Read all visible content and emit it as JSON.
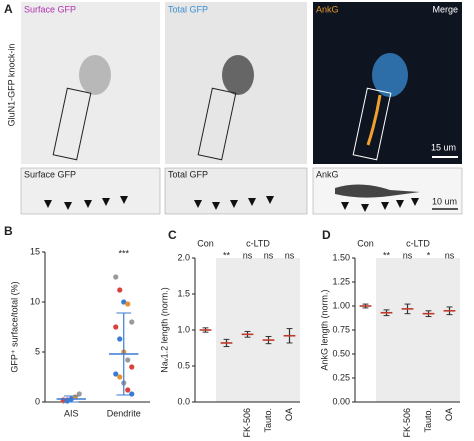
{
  "figure": {
    "panel_labels": [
      "A",
      "B",
      "C",
      "D"
    ],
    "side_label": "GluN1-GFP knock-in",
    "images": [
      {
        "label": "Surface GFP"
      },
      {
        "label": "Total GFP"
      },
      {
        "label": "AnkG",
        "label2": "Merge",
        "scale": "15 um"
      }
    ],
    "strips": [
      {
        "label": "Surface GFP"
      },
      {
        "label": "Total GFP"
      },
      {
        "label": "AnkG",
        "scale": "10 um"
      }
    ]
  },
  "chart_data": [
    {
      "type": "strip",
      "ylabel": "GFP⁺ surface/total (%)",
      "categories": [
        "AIS",
        "Dendrite"
      ],
      "points": [
        [
          0.1,
          0.2,
          0.3,
          0.5,
          0.8,
          0.2,
          0.1
        ],
        [
          12.5,
          11.2,
          10,
          9.8,
          8,
          7.5,
          6.3,
          5,
          4.2,
          3.5,
          2.8,
          2.5,
          1.9,
          1.2,
          0.8
        ]
      ],
      "colors": [
        "#9a9a9a",
        "#d9413b",
        "#3a7bd5",
        "#e8922d"
      ],
      "means": [
        0.3,
        4.8
      ],
      "errors": [
        0.3,
        4.1
      ],
      "annotations": [
        null,
        "***"
      ],
      "ylim": [
        0,
        15
      ],
      "yticks": [
        0,
        5,
        10,
        15
      ]
    },
    {
      "type": "strip",
      "ylabel": "Naᵥ1.2 length (norm.)",
      "groups": [
        "Con",
        "c-LTD"
      ],
      "categories": [
        null,
        null,
        "FK-506",
        "Tauto.",
        "OA"
      ],
      "means": [
        1.0,
        0.82,
        0.94,
        0.86,
        0.92
      ],
      "errors": [
        0.03,
        0.05,
        0.04,
        0.05,
        0.1
      ],
      "annotations": [
        null,
        "**",
        "ns",
        "ns",
        "ns"
      ],
      "ylim": [
        0,
        2
      ],
      "yticks": [
        {
          "value": 0,
          "label": "0.0"
        },
        {
          "value": 0.5,
          "label": "0.5"
        },
        {
          "value": 1,
          "label": "1.0"
        },
        {
          "value": 1.5,
          "label": "1.5"
        },
        {
          "value": 2,
          "label": "2.0"
        }
      ]
    },
    {
      "type": "strip",
      "ylabel": "AnkG length (norm.)",
      "groups": [
        "Con",
        "c-LTD"
      ],
      "categories": [
        null,
        null,
        "FK-506",
        "Tauto.",
        "OA"
      ],
      "means": [
        1.0,
        0.93,
        0.97,
        0.92,
        0.95
      ],
      "errors": [
        0.02,
        0.03,
        0.05,
        0.03,
        0.04
      ],
      "annotations": [
        null,
        "**",
        "ns",
        "*",
        "ns"
      ],
      "ylim": [
        0,
        1.5
      ],
      "yticks": [
        {
          "value": 0,
          "label": "0.00"
        },
        {
          "value": 0.25,
          "label": "0.25"
        },
        {
          "value": 0.5,
          "label": "0.50"
        },
        {
          "value": 0.75,
          "label": "0.75"
        },
        {
          "value": 1,
          "label": "1.00"
        },
        {
          "value": 1.25,
          "label": "1.25"
        },
        {
          "value": 1.5,
          "label": "1.50"
        }
      ]
    }
  ]
}
